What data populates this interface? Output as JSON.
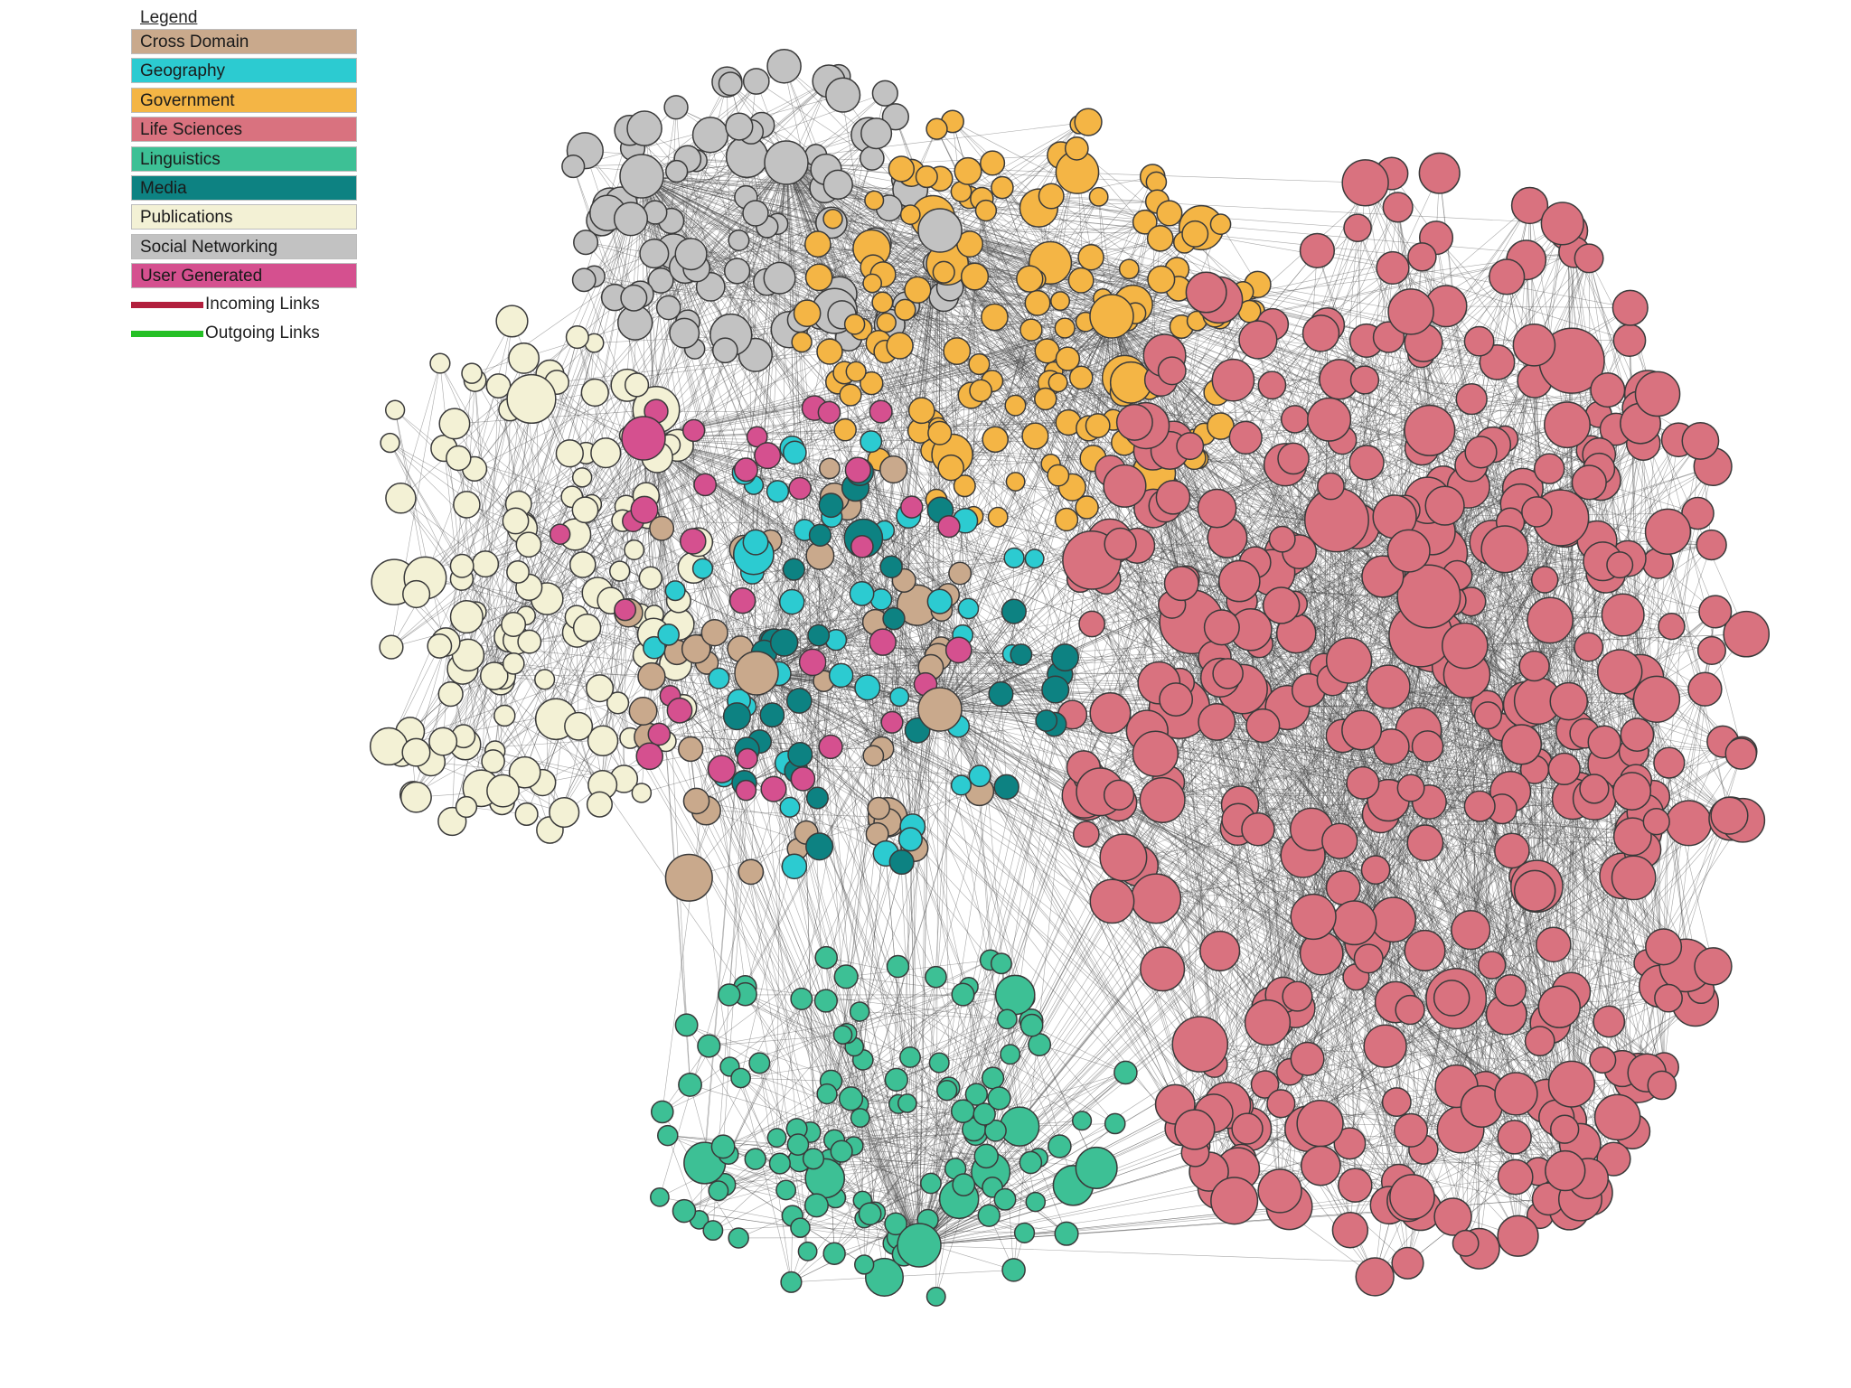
{
  "legend": {
    "title": "Legend",
    "categories": [
      {
        "label": "Cross Domain",
        "color": "#c9a98c"
      },
      {
        "label": "Geography",
        "color": "#2ccbd1"
      },
      {
        "label": "Government",
        "color": "#f4b545"
      },
      {
        "label": "Life Sciences",
        "color": "#d9727f"
      },
      {
        "label": "Linguistics",
        "color": "#3dc095"
      },
      {
        "label": "Media",
        "color": "#0d8282"
      },
      {
        "label": "Publications",
        "color": "#f3f1d5"
      },
      {
        "label": "Social Networking",
        "color": "#c2c2c2"
      },
      {
        "label": "User Generated",
        "color": "#d5508f"
      }
    ],
    "links": [
      {
        "label": "Incoming Links",
        "color": "#b21f3d"
      },
      {
        "label": "Outgoing Links",
        "color": "#25c025"
      }
    ]
  },
  "graph": {
    "node_stroke": "#3a3a3a",
    "edge_color": "#404040",
    "clusters": [
      {
        "category": "Social Networking",
        "node_count": 90
      },
      {
        "category": "Government",
        "node_count": 150
      },
      {
        "category": "Publications",
        "node_count": 130
      },
      {
        "category": "Life Sciences",
        "node_count": 380
      },
      {
        "category": "Linguistics",
        "node_count": 120
      },
      {
        "category": "Cross Domain",
        "node_count": 45
      },
      {
        "category": "Geography",
        "node_count": 45
      },
      {
        "category": "Media",
        "node_count": 35
      },
      {
        "category": "User Generated",
        "node_count": 35
      }
    ]
  }
}
